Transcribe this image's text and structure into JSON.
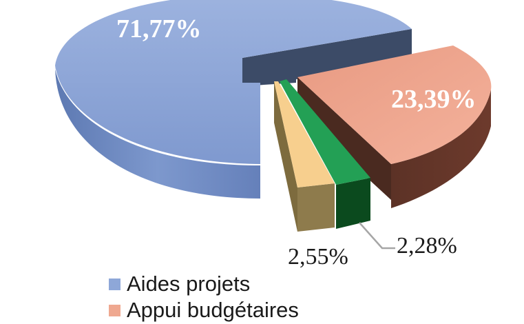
{
  "chart_data": {
    "type": "pie",
    "title": "",
    "slices": [
      {
        "label": "Aides projets",
        "value": 71.77,
        "display": "71,77%",
        "color": "#8ea7d8"
      },
      {
        "label": "Appui budgétaires",
        "value": 23.39,
        "display": "23,39%",
        "color": "#efa890"
      },
      {
        "label": "",
        "value": 2.28,
        "display": "2,28%",
        "color": "#1f9a4f"
      },
      {
        "label": "",
        "value": 2.55,
        "display": "2,55%",
        "color": "#f8cf8c"
      }
    ],
    "legend": [
      {
        "label": "Aides projets",
        "color": "#8ea7d8"
      },
      {
        "label": "Appui budgétaires",
        "color": "#efa890"
      }
    ],
    "style": "3d-exploded"
  }
}
